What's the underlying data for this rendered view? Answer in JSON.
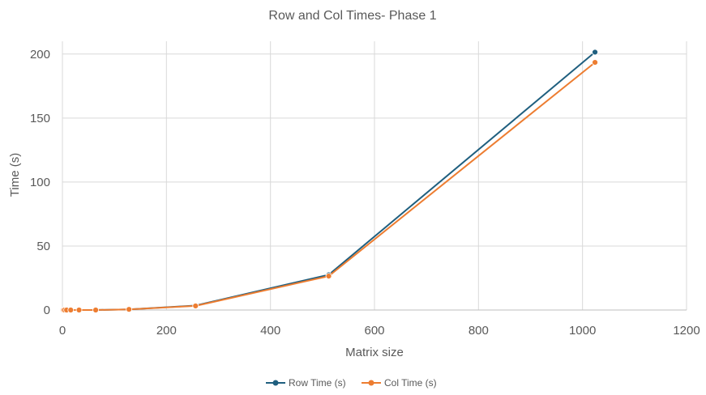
{
  "chart_data": {
    "type": "line",
    "title": "Row and Col Times- Phase 1",
    "xlabel": "Matrix size",
    "ylabel": "Time (s)",
    "xlim": [
      0,
      1200
    ],
    "ylim": [
      0,
      210
    ],
    "xticks": [
      0,
      200,
      400,
      600,
      800,
      1000,
      1200
    ],
    "yticks": [
      0,
      50,
      100,
      150,
      200
    ],
    "grid": true,
    "legend_position": "bottom",
    "series": [
      {
        "name": "Row Time (s)",
        "color": "#1f5f7f",
        "x": [
          2,
          4,
          8,
          16,
          32,
          64,
          128,
          256,
          512,
          1024
        ],
        "y": [
          0,
          0,
          0,
          0,
          0,
          0,
          0.5,
          3.5,
          27.5,
          201.5
        ]
      },
      {
        "name": "Col Time (s)",
        "color": "#ed7d31",
        "x": [
          2,
          4,
          8,
          16,
          32,
          64,
          128,
          256,
          512,
          1024
        ],
        "y": [
          0,
          0,
          0,
          0,
          0,
          0,
          0.5,
          3.2,
          26.5,
          193.5
        ]
      }
    ]
  }
}
